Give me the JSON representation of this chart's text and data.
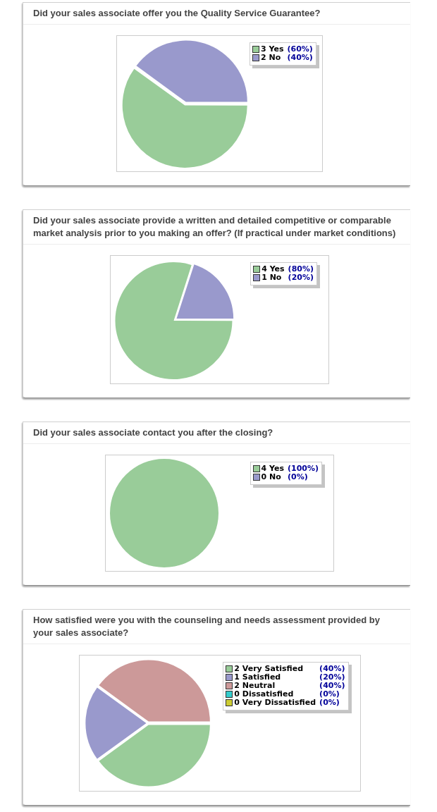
{
  "chart_data": [
    {
      "type": "pie",
      "title": "Did your sales associate offer you the Quality Service Guarantee?",
      "categories": [
        "3 Yes",
        "2 No"
      ],
      "values": [
        60,
        40
      ],
      "colors": [
        "#99cc99",
        "#9999cc"
      ],
      "value_labels": [
        "(60%)",
        "(40%)"
      ],
      "legend": "top right"
    },
    {
      "type": "pie",
      "title": "Did your sales associate provide a written and detailed competitive or comparable market analysis prior to you making an offer? (If practical under market conditions)",
      "categories": [
        "4 Yes",
        "1 No"
      ],
      "values": [
        80,
        20
      ],
      "colors": [
        "#99cc99",
        "#9999cc"
      ],
      "value_labels": [
        "(80%)",
        "(20%)"
      ],
      "legend": "top right"
    },
    {
      "type": "pie",
      "title": "Did your sales associate contact you after the closing?",
      "categories": [
        "4 Yes",
        "0 No"
      ],
      "values": [
        100,
        0
      ],
      "colors": [
        "#99cc99",
        "#9999cc"
      ],
      "value_labels": [
        "(100%)",
        "(0%)"
      ],
      "legend": "top right"
    },
    {
      "type": "pie",
      "title": "How satisfied were you with the counseling and needs assessment provided by your sales associate?",
      "categories": [
        "2 Very Satisfied",
        "1 Satisfied",
        "2 Neutral",
        "0 Dissatisfied",
        "0 Very Dissatisfied"
      ],
      "values": [
        40,
        20,
        40,
        0,
        0
      ],
      "colors": [
        "#99cc99",
        "#9999cc",
        "#cc9999",
        "#33cccc",
        "#cccc33"
      ],
      "value_labels": [
        "(40%)",
        "(20%)",
        "(40%)",
        "(0%)",
        "(0%)"
      ],
      "legend": "top right"
    }
  ]
}
